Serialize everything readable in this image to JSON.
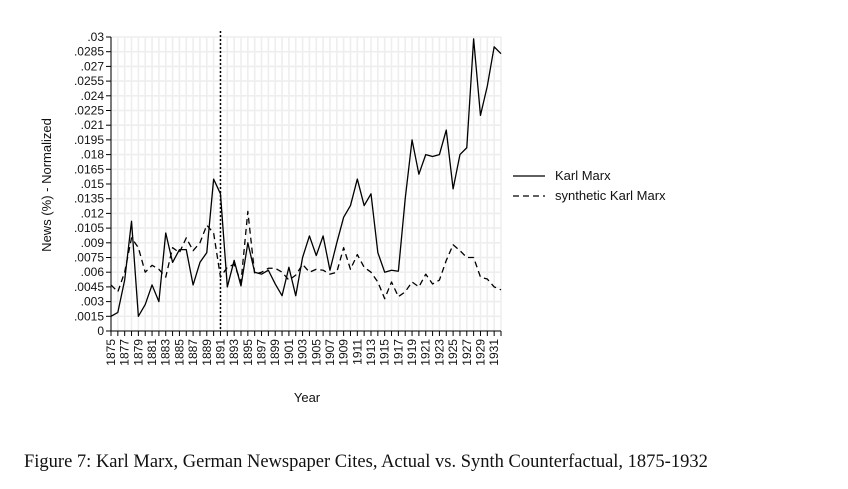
{
  "chart_data": {
    "type": "line",
    "title": "",
    "xlabel": "Year",
    "ylabel": "News (%) - Normalized",
    "ylim": [
      0,
      0.03
    ],
    "y_ticks": [
      "0",
      ".0015",
      ".003",
      ".0045",
      ".006",
      ".0075",
      ".009",
      ".0105",
      ".012",
      ".0135",
      ".015",
      ".0165",
      ".018",
      ".0195",
      ".021",
      ".0225",
      ".024",
      ".0255",
      ".027",
      ".0285",
      ".03"
    ],
    "x_ticks": [
      "1875",
      "1877",
      "1879",
      "1881",
      "1883",
      "1885",
      "1887",
      "1889",
      "1891",
      "1893",
      "1895",
      "1897",
      "1899",
      "1901",
      "1903",
      "1905",
      "1907",
      "1909",
      "1911",
      "1913",
      "1915",
      "1917",
      "1919",
      "1921",
      "1923",
      "1925",
      "1927",
      "1929",
      "1931"
    ],
    "xlim": [
      1875,
      1932
    ],
    "grid": true,
    "treatment_year": 1891,
    "legend_position": "right",
    "series": [
      {
        "name": "Karl Marx",
        "style": "solid",
        "x": [
          1875,
          1876,
          1877,
          1878,
          1879,
          1880,
          1881,
          1882,
          1883,
          1884,
          1885,
          1886,
          1887,
          1888,
          1889,
          1890,
          1891,
          1892,
          1893,
          1894,
          1895,
          1896,
          1897,
          1898,
          1899,
          1900,
          1901,
          1902,
          1903,
          1904,
          1905,
          1906,
          1907,
          1908,
          1909,
          1910,
          1911,
          1912,
          1913,
          1914,
          1915,
          1916,
          1917,
          1918,
          1919,
          1920,
          1921,
          1922,
          1923,
          1924,
          1925,
          1926,
          1927,
          1928,
          1929,
          1930,
          1931,
          1932
        ],
        "values": [
          0.0015,
          0.0019,
          0.0052,
          0.0112,
          0.0015,
          0.0027,
          0.0047,
          0.003,
          0.01,
          0.007,
          0.0083,
          0.0083,
          0.0047,
          0.007,
          0.008,
          0.0155,
          0.014,
          0.0045,
          0.0072,
          0.0046,
          0.009,
          0.006,
          0.0058,
          0.0062,
          0.0048,
          0.0036,
          0.0065,
          0.0036,
          0.0075,
          0.0097,
          0.0077,
          0.0097,
          0.0062,
          0.009,
          0.0116,
          0.0128,
          0.0155,
          0.0128,
          0.014,
          0.008,
          0.006,
          0.0062,
          0.0061,
          0.0135,
          0.0195,
          0.016,
          0.018,
          0.0178,
          0.018,
          0.0205,
          0.0145,
          0.018,
          0.0187,
          0.0298,
          0.022,
          0.025,
          0.029,
          0.0283
        ]
      },
      {
        "name": "synthetic Karl Marx",
        "style": "dashed",
        "x": [
          1875,
          1876,
          1877,
          1878,
          1879,
          1880,
          1881,
          1882,
          1883,
          1884,
          1885,
          1886,
          1887,
          1888,
          1889,
          1890,
          1891,
          1892,
          1893,
          1894,
          1895,
          1896,
          1897,
          1898,
          1899,
          1900,
          1901,
          1902,
          1903,
          1904,
          1905,
          1906,
          1907,
          1908,
          1909,
          1910,
          1911,
          1912,
          1913,
          1914,
          1915,
          1916,
          1917,
          1918,
          1919,
          1920,
          1921,
          1922,
          1923,
          1924,
          1925,
          1926,
          1927,
          1928,
          1929,
          1930,
          1931,
          1932
        ],
        "values": [
          0.0047,
          0.004,
          0.006,
          0.0095,
          0.0085,
          0.006,
          0.0067,
          0.0063,
          0.0055,
          0.0085,
          0.008,
          0.0095,
          0.0082,
          0.009,
          0.0108,
          0.01,
          0.0055,
          0.0065,
          0.0068,
          0.005,
          0.0122,
          0.0058,
          0.006,
          0.0064,
          0.0064,
          0.006,
          0.0052,
          0.0057,
          0.0068,
          0.006,
          0.0063,
          0.0062,
          0.0058,
          0.006,
          0.0085,
          0.0063,
          0.0078,
          0.0065,
          0.006,
          0.005,
          0.0033,
          0.005,
          0.0035,
          0.004,
          0.005,
          0.0045,
          0.0058,
          0.0048,
          0.0052,
          0.0072,
          0.0088,
          0.0082,
          0.0075,
          0.0075,
          0.0055,
          0.0053,
          0.0045,
          0.0042
        ]
      }
    ]
  },
  "caption": "Figure 7: Karl Marx, German Newspaper Cites, Actual vs. Synth Counterfactual, 1875-1932",
  "colors": {
    "line": "#000000",
    "grid": "#eeeeee",
    "background": "#ffffff"
  }
}
